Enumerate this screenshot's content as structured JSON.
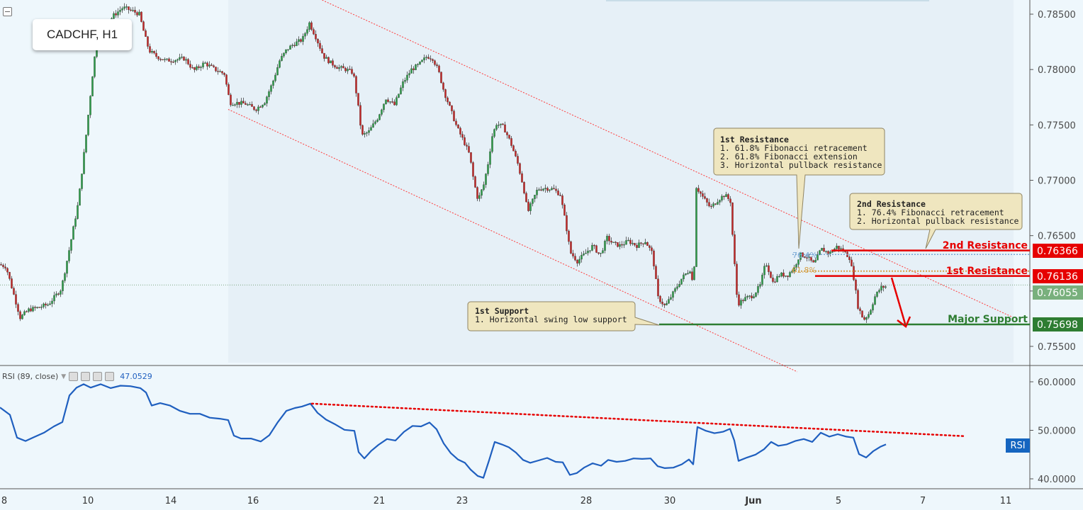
{
  "symbol_label": "CADCHF, H1",
  "chart_data": {
    "type": "candlestick",
    "price_axis": {
      "ticks": [
        "0.78500",
        "0.78000",
        "0.77500",
        "0.77000",
        "0.76500",
        "0.76000",
        "0.75500"
      ],
      "ylim": [
        0.7525,
        0.7865
      ]
    },
    "time_axis": {
      "ticks": [
        "8",
        "10",
        "14",
        "16",
        "21",
        "23",
        "28",
        "30",
        "Jun",
        "5",
        "7",
        "11"
      ]
    },
    "current_price": "0.76055",
    "levels": [
      {
        "name": "2nd Resistance",
        "price": "0.76366",
        "color": "#e60000"
      },
      {
        "name": "1st Resistance",
        "price": "0.76136",
        "color": "#e60000"
      },
      {
        "name": "Major Support",
        "price": "0.75698",
        "color": "#2e7d32"
      }
    ],
    "fib_labels": [
      "76.4%",
      "61.8%"
    ],
    "price_path": [
      [
        0,
        0.7624
      ],
      [
        10,
        0.7622
      ],
      [
        20,
        0.7599
      ],
      [
        30,
        0.7576
      ],
      [
        42,
        0.7583
      ],
      [
        55,
        0.7585
      ],
      [
        70,
        0.7588
      ],
      [
        88,
        0.7602
      ],
      [
        100,
        0.764
      ],
      [
        112,
        0.768
      ],
      [
        122,
        0.7735
      ],
      [
        132,
        0.7795
      ],
      [
        140,
        0.7838
      ],
      [
        150,
        0.7838
      ],
      [
        162,
        0.7849
      ],
      [
        175,
        0.7856
      ],
      [
        188,
        0.7853
      ],
      [
        198,
        0.785
      ],
      [
        206,
        0.783
      ],
      [
        212,
        0.7817
      ],
      [
        222,
        0.7812
      ],
      [
        235,
        0.7808
      ],
      [
        250,
        0.7809
      ],
      [
        262,
        0.781
      ],
      [
        275,
        0.7799
      ],
      [
        290,
        0.7806
      ],
      [
        305,
        0.78
      ],
      [
        318,
        0.7796
      ],
      [
        326,
        0.777
      ],
      [
        335,
        0.777
      ],
      [
        348,
        0.7769
      ],
      [
        362,
        0.7764
      ],
      [
        375,
        0.7771
      ],
      [
        386,
        0.7788
      ],
      [
        396,
        0.7808
      ],
      [
        406,
        0.7818
      ],
      [
        416,
        0.7823
      ],
      [
        428,
        0.7827
      ],
      [
        438,
        0.7842
      ],
      [
        448,
        0.7828
      ],
      [
        458,
        0.7812
      ],
      [
        468,
        0.7806
      ],
      [
        478,
        0.7802
      ],
      [
        490,
        0.78
      ],
      [
        500,
        0.7797
      ],
      [
        506,
        0.7771
      ],
      [
        512,
        0.774
      ],
      [
        522,
        0.7744
      ],
      [
        534,
        0.7756
      ],
      [
        546,
        0.7774
      ],
      [
        558,
        0.7768
      ],
      [
        570,
        0.7788
      ],
      [
        582,
        0.78
      ],
      [
        592,
        0.7804
      ],
      [
        604,
        0.7812
      ],
      [
        612,
        0.781
      ],
      [
        620,
        0.7799
      ],
      [
        628,
        0.778
      ],
      [
        636,
        0.7766
      ],
      [
        646,
        0.7748
      ],
      [
        656,
        0.7735
      ],
      [
        664,
        0.7723
      ],
      [
        670,
        0.7699
      ],
      [
        676,
        0.7682
      ],
      [
        684,
        0.7696
      ],
      [
        690,
        0.7715
      ],
      [
        696,
        0.774
      ],
      [
        702,
        0.7751
      ],
      [
        712,
        0.7748
      ],
      [
        722,
        0.7734
      ],
      [
        732,
        0.7715
      ],
      [
        740,
        0.7694
      ],
      [
        746,
        0.7671
      ],
      [
        752,
        0.768
      ],
      [
        760,
        0.7692
      ],
      [
        770,
        0.7693
      ],
      [
        782,
        0.7692
      ],
      [
        792,
        0.7687
      ],
      [
        800,
        0.766
      ],
      [
        806,
        0.7635
      ],
      [
        816,
        0.7627
      ],
      [
        826,
        0.7633
      ],
      [
        838,
        0.7641
      ],
      [
        848,
        0.7632
      ],
      [
        858,
        0.7648
      ],
      [
        866,
        0.7643
      ],
      [
        876,
        0.7641
      ],
      [
        888,
        0.7645
      ],
      [
        900,
        0.7641
      ],
      [
        912,
        0.7645
      ],
      [
        922,
        0.7634
      ],
      [
        930,
        0.7594
      ],
      [
        940,
        0.7586
      ],
      [
        952,
        0.7599
      ],
      [
        964,
        0.7612
      ],
      [
        976,
        0.762
      ],
      [
        980,
        0.76
      ],
      [
        984,
        0.7694
      ],
      [
        994,
        0.7684
      ],
      [
        1004,
        0.7675
      ],
      [
        1014,
        0.7682
      ],
      [
        1024,
        0.7687
      ],
      [
        1032,
        0.7681
      ],
      [
        1036,
        0.7641
      ],
      [
        1042,
        0.7588
      ],
      [
        1052,
        0.7593
      ],
      [
        1064,
        0.7596
      ],
      [
        1074,
        0.7605
      ],
      [
        1082,
        0.7626
      ],
      [
        1092,
        0.7608
      ],
      [
        1102,
        0.7615
      ],
      [
        1112,
        0.7614
      ],
      [
        1122,
        0.7621
      ],
      [
        1130,
        0.7633
      ],
      [
        1140,
        0.7631
      ],
      [
        1150,
        0.7624
      ],
      [
        1160,
        0.7638
      ],
      [
        1172,
        0.7634
      ],
      [
        1182,
        0.764
      ],
      [
        1192,
        0.7636
      ],
      [
        1200,
        0.763
      ],
      [
        1206,
        0.7612
      ],
      [
        1212,
        0.7586
      ],
      [
        1220,
        0.7574
      ],
      [
        1228,
        0.758
      ],
      [
        1236,
        0.7595
      ],
      [
        1244,
        0.7603
      ],
      [
        1250,
        0.7604
      ]
    ],
    "channel": {
      "upper": [
        [
          440,
          0.7867
        ],
        [
          1430,
          0.7576
        ]
      ],
      "lower": [
        [
          322,
          0.7764
        ],
        [
          1125,
          0.7527
        ]
      ]
    },
    "rsi": {
      "label": "RSI (89, close)",
      "value": "47.0529",
      "tag": "RSI",
      "ticks": [
        "60.0000",
        "50.0000",
        "40.0000"
      ],
      "ylim": [
        38.5,
        63.0
      ],
      "values": [
        [
          0,
          54.7
        ],
        [
          14,
          53.2
        ],
        [
          24,
          48.5
        ],
        [
          36,
          47.8
        ],
        [
          48,
          48.6
        ],
        [
          62,
          49.5
        ],
        [
          76,
          50.8
        ],
        [
          88,
          51.7
        ],
        [
          98,
          57.2
        ],
        [
          108,
          58.8
        ],
        [
          118,
          59.5
        ],
        [
          128,
          58.8
        ],
        [
          142,
          59.5
        ],
        [
          156,
          58.7
        ],
        [
          170,
          59.2
        ],
        [
          184,
          59.1
        ],
        [
          198,
          58.7
        ],
        [
          206,
          57.8
        ],
        [
          214,
          55.1
        ],
        [
          226,
          55.6
        ],
        [
          240,
          55.1
        ],
        [
          254,
          54.0
        ],
        [
          268,
          53.4
        ],
        [
          282,
          53.4
        ],
        [
          296,
          52.6
        ],
        [
          310,
          52.4
        ],
        [
          322,
          52.1
        ],
        [
          330,
          48.9
        ],
        [
          340,
          48.3
        ],
        [
          354,
          48.3
        ],
        [
          368,
          47.7
        ],
        [
          380,
          49.0
        ],
        [
          392,
          51.7
        ],
        [
          404,
          54.0
        ],
        [
          416,
          54.6
        ],
        [
          426,
          54.9
        ],
        [
          438,
          55.5
        ],
        [
          448,
          53.6
        ],
        [
          460,
          52.2
        ],
        [
          472,
          51.3
        ],
        [
          486,
          50.1
        ],
        [
          500,
          49.9
        ],
        [
          506,
          45.5
        ],
        [
          514,
          44.2
        ],
        [
          524,
          45.8
        ],
        [
          534,
          47.0
        ],
        [
          546,
          48.2
        ],
        [
          558,
          47.9
        ],
        [
          570,
          49.7
        ],
        [
          582,
          50.9
        ],
        [
          594,
          50.8
        ],
        [
          606,
          51.6
        ],
        [
          616,
          50.2
        ],
        [
          626,
          47.3
        ],
        [
          636,
          45.3
        ],
        [
          646,
          44.0
        ],
        [
          656,
          43.3
        ],
        [
          664,
          41.9
        ],
        [
          674,
          40.6
        ],
        [
          682,
          40.2
        ],
        [
          690,
          43.8
        ],
        [
          698,
          47.6
        ],
        [
          708,
          47.1
        ],
        [
          718,
          46.5
        ],
        [
          728,
          45.4
        ],
        [
          738,
          43.9
        ],
        [
          748,
          43.3
        ],
        [
          760,
          43.8
        ],
        [
          772,
          44.3
        ],
        [
          784,
          43.5
        ],
        [
          794,
          43.4
        ],
        [
          804,
          40.8
        ],
        [
          814,
          41.2
        ],
        [
          824,
          42.3
        ],
        [
          836,
          43.2
        ],
        [
          848,
          42.7
        ],
        [
          858,
          43.9
        ],
        [
          870,
          43.5
        ],
        [
          882,
          43.7
        ],
        [
          894,
          44.2
        ],
        [
          906,
          44.1
        ],
        [
          918,
          44.2
        ],
        [
          928,
          42.6
        ],
        [
          938,
          42.2
        ],
        [
          950,
          42.3
        ],
        [
          962,
          43.0
        ],
        [
          972,
          44.0
        ],
        [
          978,
          43.0
        ],
        [
          984,
          50.7
        ],
        [
          996,
          49.9
        ],
        [
          1008,
          49.4
        ],
        [
          1020,
          49.7
        ],
        [
          1030,
          50.3
        ],
        [
          1036,
          47.9
        ],
        [
          1042,
          43.7
        ],
        [
          1054,
          44.4
        ],
        [
          1066,
          45.0
        ],
        [
          1078,
          46.1
        ],
        [
          1088,
          47.6
        ],
        [
          1098,
          46.8
        ],
        [
          1110,
          47.1
        ],
        [
          1122,
          47.8
        ],
        [
          1134,
          48.2
        ],
        [
          1146,
          47.6
        ],
        [
          1158,
          49.5
        ],
        [
          1170,
          48.7
        ],
        [
          1182,
          49.2
        ],
        [
          1194,
          48.7
        ],
        [
          1204,
          48.5
        ],
        [
          1212,
          45.1
        ],
        [
          1222,
          44.4
        ],
        [
          1232,
          45.7
        ],
        [
          1242,
          46.6
        ],
        [
          1250,
          47.1
        ]
      ],
      "trendline": [
        [
          440,
          55.5
        ],
        [
          1360,
          48.8
        ]
      ]
    },
    "annotations": [
      {
        "id": "first-resistance",
        "lines": [
          "1st Resistance",
          "1. 61.8% Fibonacci retracement",
          "2. 61.8% Fibonacci extension",
          "3. Horizontal pullback resistance"
        ]
      },
      {
        "id": "second-resistance",
        "lines": [
          "2nd Resistance",
          "1. 76.4% Fibonacci retracement",
          "2. Horizontal pullback resistance"
        ]
      },
      {
        "id": "first-support",
        "lines": [
          "1st Support",
          "1. Horizontal swing low support"
        ]
      }
    ]
  }
}
